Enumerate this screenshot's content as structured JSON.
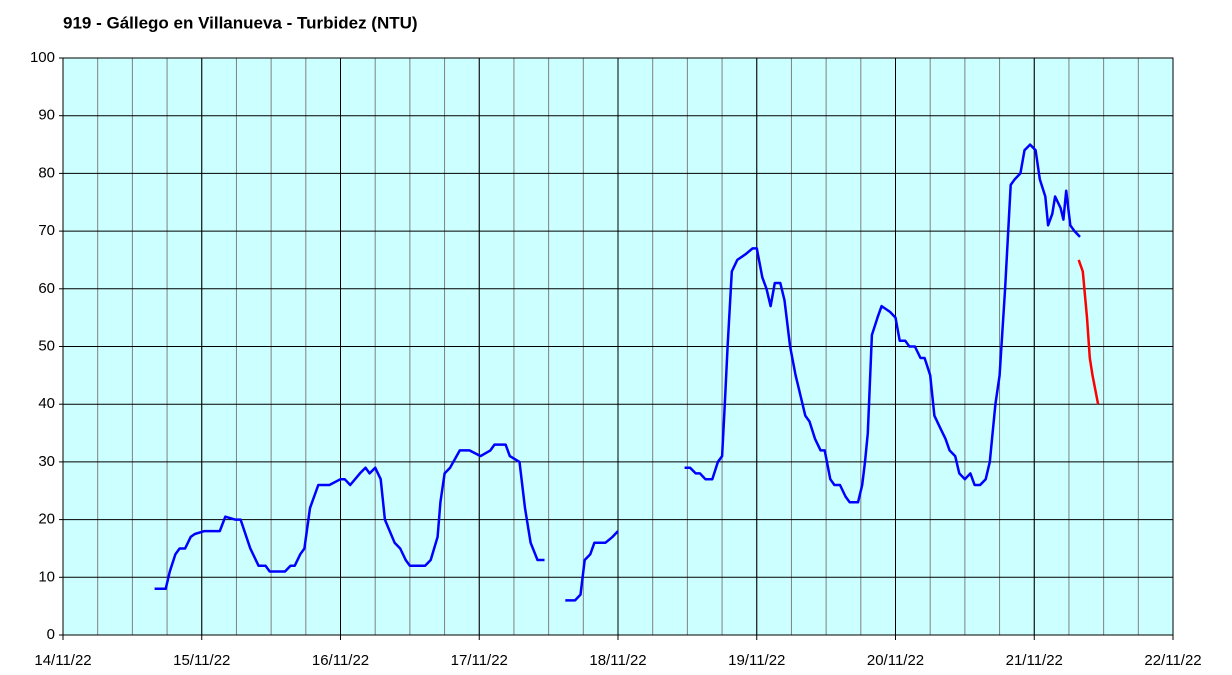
{
  "chart_data": {
    "type": "line",
    "title": "919 - Gállego en Villanueva - Turbidez (NTU)",
    "xlim": [
      0,
      8
    ],
    "xticks": [
      {
        "value": 0,
        "label": "14/11/22"
      },
      {
        "value": 1,
        "label": "15/11/22"
      },
      {
        "value": 2,
        "label": "16/11/22"
      },
      {
        "value": 3,
        "label": "17/11/22"
      },
      {
        "value": 4,
        "label": "18/11/22"
      },
      {
        "value": 5,
        "label": "19/11/22"
      },
      {
        "value": 6,
        "label": "20/11/22"
      },
      {
        "value": 7,
        "label": "21/11/22"
      },
      {
        "value": 8,
        "label": "22/11/22"
      }
    ],
    "minor_grid_step": 0.25,
    "ylim": [
      0,
      100
    ],
    "yticks": [
      0,
      10,
      20,
      30,
      40,
      50,
      60,
      70,
      80,
      90,
      100
    ],
    "grid": true,
    "plot_background": "#ccffff",
    "series": [
      {
        "color": "#0000ff",
        "x": [
          0.66,
          0.74,
          0.77,
          0.81,
          0.84,
          0.88,
          0.92,
          0.95,
          1.02,
          1.13,
          1.17,
          1.24,
          1.28,
          1.35,
          1.41,
          1.46,
          1.49,
          1.6,
          1.64,
          1.67,
          1.71,
          1.74,
          1.78,
          1.84,
          1.92,
          2.0,
          2.03,
          2.07,
          2.14,
          2.18,
          2.21,
          2.25,
          2.29,
          2.32,
          2.39,
          2.43,
          2.47,
          2.5,
          2.61,
          2.65,
          2.7,
          2.72,
          2.75,
          2.79,
          2.86,
          2.93,
          3.01,
          3.08,
          3.11,
          3.19,
          3.22,
          3.29,
          3.33,
          3.37,
          3.42,
          3.47,
          3.55,
          3.62,
          3.69,
          3.73,
          3.76,
          3.8,
          3.83,
          3.91,
          3.96,
          4.0,
          4.24,
          4.48,
          4.52,
          4.56,
          4.59,
          4.63,
          4.68,
          4.72,
          4.75,
          4.77,
          4.79,
          4.82,
          4.86,
          4.92,
          4.97,
          5.0,
          5.04,
          5.07,
          5.1,
          5.13,
          5.17,
          5.2,
          5.24,
          5.28,
          5.31,
          5.35,
          5.38,
          5.42,
          5.46,
          5.49,
          5.53,
          5.56,
          5.6,
          5.64,
          5.67,
          5.73,
          5.76,
          5.78,
          5.8,
          5.83,
          5.87,
          5.9,
          5.96,
          6.0,
          6.03,
          6.07,
          6.1,
          6.14,
          6.18,
          6.21,
          6.25,
          6.28,
          6.32,
          6.36,
          6.39,
          6.43,
          6.46,
          6.5,
          6.54,
          6.57,
          6.61,
          6.65,
          6.68,
          6.72,
          6.75,
          6.79,
          6.83,
          6.86,
          6.9,
          6.93,
          6.97,
          7.01,
          7.04,
          7.08,
          7.1,
          7.13,
          7.15,
          7.19,
          7.21,
          7.23,
          7.26,
          7.29,
          7.33
        ],
        "values": [
          8,
          8,
          11,
          14,
          15,
          15,
          17,
          17.5,
          18,
          18,
          20.5,
          20,
          20,
          15,
          12,
          12,
          11,
          11,
          12,
          12,
          14,
          15,
          22,
          26,
          26,
          27,
          27,
          26,
          28,
          29,
          28,
          29,
          27,
          20,
          16,
          15,
          13,
          12,
          12,
          13,
          17,
          23,
          28,
          29,
          32,
          32,
          31,
          32,
          33,
          33,
          31,
          30,
          22,
          16,
          13,
          13,
          null,
          6,
          6,
          7,
          13,
          14,
          16,
          16,
          17,
          18,
          null,
          29,
          29,
          28,
          28,
          27,
          27,
          30,
          31,
          40,
          50,
          63,
          65,
          66,
          67,
          67,
          62,
          60,
          57,
          61,
          61,
          58,
          50,
          45,
          42,
          38,
          37,
          34,
          32,
          32,
          27,
          26,
          26,
          24,
          23,
          23,
          26,
          30,
          35,
          52,
          55,
          57,
          56,
          55,
          51,
          51,
          50,
          50,
          48,
          48,
          45,
          38,
          36,
          34,
          32,
          31,
          28,
          27,
          28,
          26,
          26,
          27,
          30,
          40,
          45,
          60,
          78,
          79,
          80,
          84,
          85,
          84,
          79,
          76,
          71,
          73,
          76,
          74,
          72,
          77,
          71,
          70,
          69
        ]
      },
      {
        "color": "#ff0000",
        "x": [
          7.32,
          7.35,
          7.38,
          7.4,
          7.42,
          7.46
        ],
        "values": [
          65,
          63,
          55,
          48,
          45,
          40
        ]
      }
    ]
  }
}
